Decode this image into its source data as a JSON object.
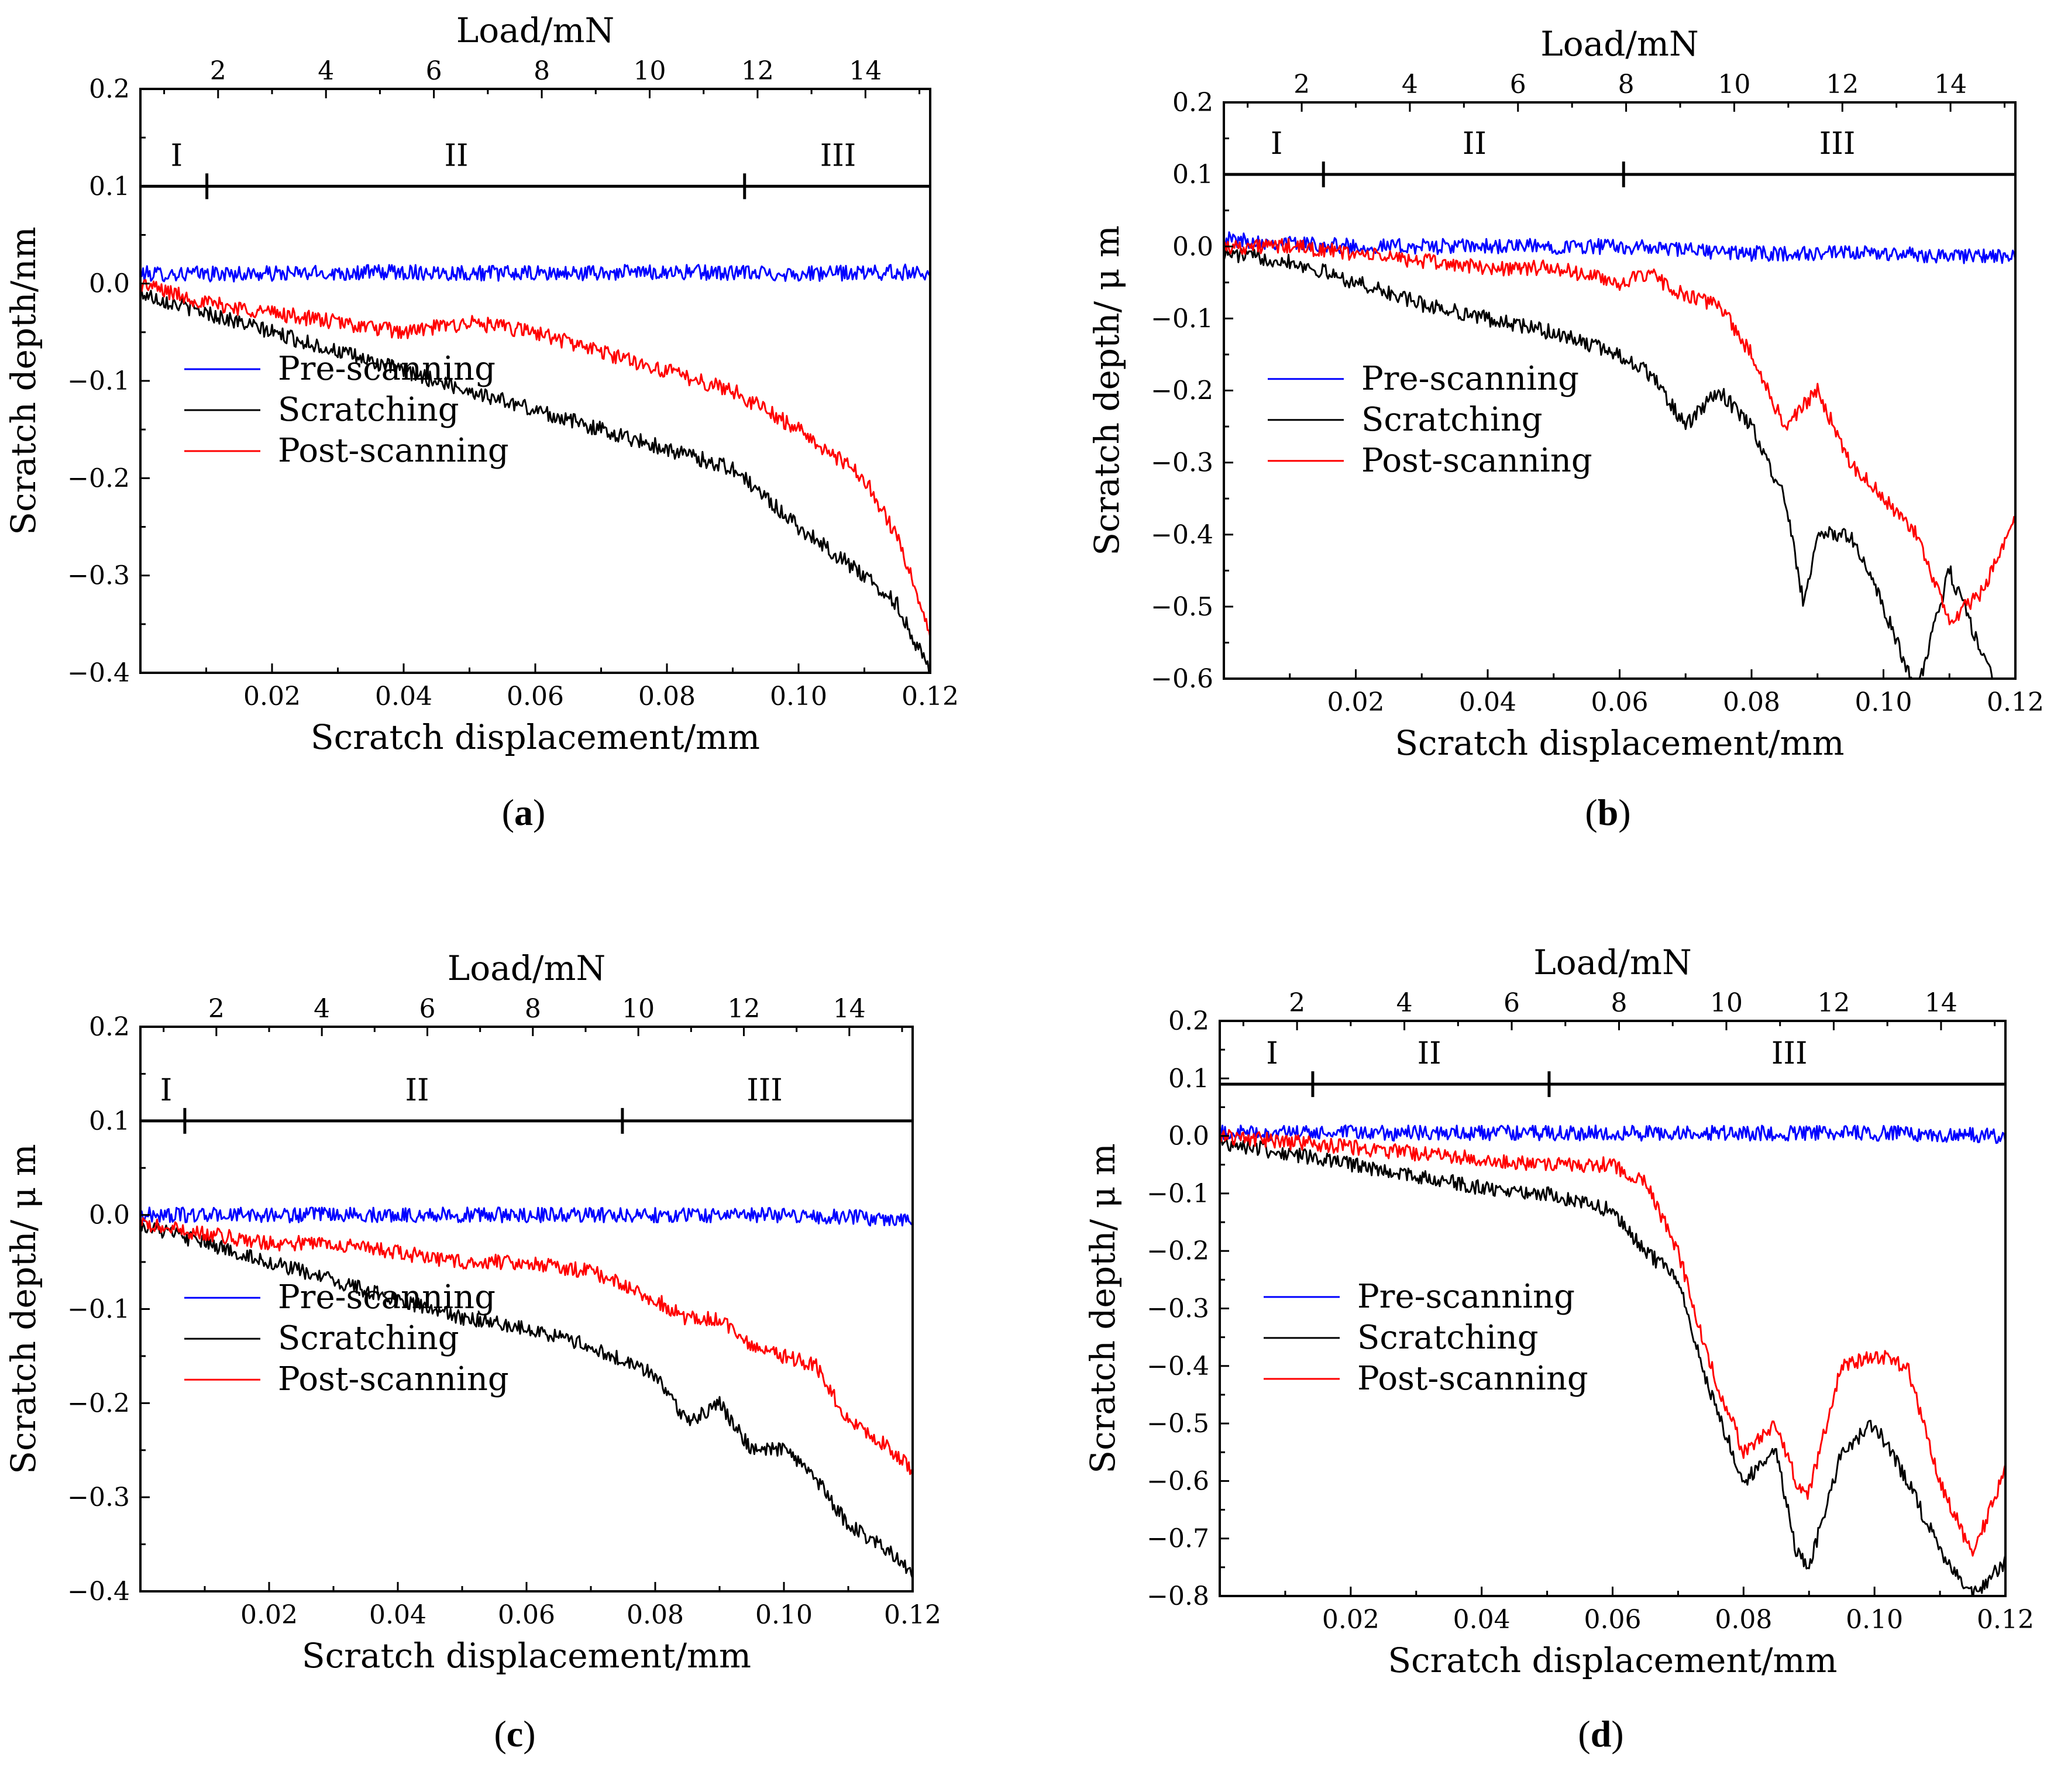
{
  "chart_data": [
    {
      "type": "line",
      "panel": "a",
      "caption": "(a)",
      "xlabel": "Scratch displacement/mm",
      "x2label": "Load/mN",
      "ylabel": "Scratch depth/nm",
      "xlim": [
        0,
        0.12
      ],
      "ylim": [
        -0.4,
        0.2
      ],
      "x2lim": [
        0.56,
        15.2
      ],
      "xticks": [
        0.02,
        0.04,
        0.06,
        0.08,
        0.1,
        0.12
      ],
      "xtick_labels": [
        "0.02",
        "0.04",
        "0.06",
        "0.08",
        "0.10",
        "0.12"
      ],
      "yticks": [
        -0.4,
        -0.3,
        -0.2,
        -0.1,
        0.0,
        0.1,
        0.2
      ],
      "ytick_labels": [
        "−0.4",
        "−0.3",
        "−0.2",
        "−0.1",
        "0.0",
        "0.1",
        "0.2"
      ],
      "x2ticks": [
        2,
        4,
        6,
        8,
        10,
        12,
        14
      ],
      "x2tick_labels": [
        "2",
        "4",
        "6",
        "8",
        "10",
        "12",
        "14"
      ],
      "region_line_y": 0.1,
      "region_boundaries": [
        0.0101,
        0.0918
      ],
      "regions": [
        {
          "label": "I",
          "x": 0.0055
        },
        {
          "label": "II",
          "x": 0.048
        },
        {
          "label": "III",
          "x": 0.106
        }
      ],
      "legend_position": "left-middle",
      "series": [
        {
          "name": "Pre-scanning",
          "color": "#0000ff",
          "x": [
            0,
            0.02,
            0.04,
            0.06,
            0.08,
            0.1,
            0.12
          ],
          "y": [
            0.01,
            0.01,
            0.012,
            0.01,
            0.012,
            0.01,
            0.012
          ]
        },
        {
          "name": "Scratching",
          "color": "#000000",
          "x": [
            0,
            0.01,
            0.02,
            0.03,
            0.04,
            0.05,
            0.06,
            0.07,
            0.08,
            0.09,
            0.1,
            0.11,
            0.115,
            0.12
          ],
          "y": [
            -0.01,
            -0.03,
            -0.05,
            -0.07,
            -0.09,
            -0.11,
            -0.13,
            -0.15,
            -0.17,
            -0.19,
            -0.25,
            -0.3,
            -0.33,
            -0.4
          ]
        },
        {
          "name": "Post-scanning",
          "color": "#ff0000",
          "x": [
            0,
            0.01,
            0.02,
            0.03,
            0.04,
            0.05,
            0.06,
            0.07,
            0.08,
            0.09,
            0.1,
            0.11,
            0.115,
            0.12
          ],
          "y": [
            0.0,
            -0.02,
            -0.03,
            -0.04,
            -0.05,
            -0.04,
            -0.05,
            -0.07,
            -0.09,
            -0.11,
            -0.15,
            -0.2,
            -0.26,
            -0.36
          ]
        }
      ]
    },
    {
      "type": "line",
      "panel": "b",
      "caption": "(b)",
      "xlabel": "Scratch displacement/mm",
      "x2label": "Load/mN",
      "ylabel": "Scratch depth/ μ m",
      "xlim": [
        0,
        0.12
      ],
      "ylim": [
        -0.6,
        0.2
      ],
      "x2lim": [
        0.56,
        15.2
      ],
      "xticks": [
        0.02,
        0.04,
        0.06,
        0.08,
        0.1,
        0.12
      ],
      "xtick_labels": [
        "0.02",
        "0.04",
        "0.06",
        "0.08",
        "0.10",
        "0.12"
      ],
      "yticks": [
        -0.6,
        -0.5,
        -0.4,
        -0.3,
        -0.2,
        -0.1,
        0.0,
        0.1,
        0.2
      ],
      "ytick_labels": [
        "−0.6",
        "−0.5",
        "−0.4",
        "−0.3",
        "−0.2",
        "−0.1",
        "0.0",
        "0.1",
        "0.2"
      ],
      "x2ticks": [
        2,
        4,
        6,
        8,
        10,
        12,
        14
      ],
      "x2tick_labels": [
        "2",
        "4",
        "6",
        "8",
        "10",
        "12",
        "14"
      ],
      "region_line_y": 0.1,
      "region_boundaries": [
        0.0151,
        0.0606
      ],
      "regions": [
        {
          "label": "I",
          "x": 0.008
        },
        {
          "label": "II",
          "x": 0.038
        },
        {
          "label": "III",
          "x": 0.093
        }
      ],
      "legend_position": "left-middle",
      "series": [
        {
          "name": "Pre-scanning",
          "color": "#0000ff",
          "x": [
            0,
            0.02,
            0.04,
            0.06,
            0.08,
            0.1,
            0.12
          ],
          "y": [
            0.01,
            0.0,
            0.0,
            0.0,
            -0.01,
            -0.01,
            -0.015
          ]
        },
        {
          "name": "Scratching",
          "color": "#000000",
          "x": [
            0,
            0.01,
            0.02,
            0.03,
            0.04,
            0.05,
            0.06,
            0.065,
            0.07,
            0.075,
            0.08,
            0.085,
            0.088,
            0.09,
            0.095,
            0.1,
            0.105,
            0.11,
            0.12
          ],
          "y": [
            -0.01,
            -0.02,
            -0.05,
            -0.08,
            -0.1,
            -0.12,
            -0.15,
            -0.18,
            -0.25,
            -0.2,
            -0.25,
            -0.35,
            -0.5,
            -0.4,
            -0.4,
            -0.5,
            -0.62,
            -0.45,
            -0.68
          ]
        },
        {
          "name": "Post-scanning",
          "color": "#ff0000",
          "x": [
            0,
            0.01,
            0.02,
            0.03,
            0.04,
            0.05,
            0.06,
            0.065,
            0.07,
            0.075,
            0.08,
            0.085,
            0.09,
            0.095,
            0.1,
            0.105,
            0.11,
            0.115,
            0.12
          ],
          "y": [
            0.0,
            0.0,
            -0.01,
            -0.02,
            -0.03,
            -0.03,
            -0.05,
            -0.04,
            -0.07,
            -0.08,
            -0.15,
            -0.25,
            -0.2,
            -0.3,
            -0.35,
            -0.4,
            -0.52,
            -0.48,
            -0.38
          ]
        }
      ]
    },
    {
      "type": "line",
      "panel": "c",
      "caption": "(c)",
      "xlabel": "Scratch displacement/mm",
      "x2label": "Load/mN",
      "ylabel": "Scratch depth/ μ m",
      "xlim": [
        0,
        0.12
      ],
      "ylim": [
        -0.4,
        0.2
      ],
      "x2lim": [
        0.56,
        15.2
      ],
      "xticks": [
        0.02,
        0.04,
        0.06,
        0.08,
        0.1,
        0.12
      ],
      "xtick_labels": [
        "0.02",
        "0.04",
        "0.06",
        "0.08",
        "0.10",
        "0.12"
      ],
      "yticks": [
        -0.4,
        -0.3,
        -0.2,
        -0.1,
        0.0,
        0.1,
        0.2
      ],
      "ytick_labels": [
        "−0.4",
        "−0.3",
        "−0.2",
        "−0.1",
        "0.0",
        "0.1",
        "0.2"
      ],
      "x2ticks": [
        2,
        4,
        6,
        8,
        10,
        12,
        14
      ],
      "x2tick_labels": [
        "2",
        "4",
        "6",
        "8",
        "10",
        "12",
        "14"
      ],
      "region_line_y": 0.1,
      "region_boundaries": [
        0.0069,
        0.0749
      ],
      "regions": [
        {
          "label": "I",
          "x": 0.004
        },
        {
          "label": "II",
          "x": 0.043
        },
        {
          "label": "III",
          "x": 0.097
        }
      ],
      "legend_position": "left-middle",
      "series": [
        {
          "name": "Pre-scanning",
          "color": "#0000ff",
          "x": [
            0,
            0.02,
            0.04,
            0.06,
            0.08,
            0.1,
            0.12
          ],
          "y": [
            0.0,
            0.0,
            0.0,
            0.0,
            0.0,
            0.0,
            -0.005
          ]
        },
        {
          "name": "Scratching",
          "color": "#000000",
          "x": [
            0,
            0.01,
            0.02,
            0.03,
            0.04,
            0.05,
            0.06,
            0.07,
            0.08,
            0.085,
            0.09,
            0.095,
            0.1,
            0.105,
            0.11,
            0.115,
            0.12
          ],
          "y": [
            -0.01,
            -0.03,
            -0.05,
            -0.07,
            -0.09,
            -0.11,
            -0.12,
            -0.14,
            -0.17,
            -0.22,
            -0.2,
            -0.25,
            -0.25,
            -0.28,
            -0.33,
            -0.35,
            -0.38
          ]
        },
        {
          "name": "Post-scanning",
          "color": "#ff0000",
          "x": [
            0,
            0.01,
            0.02,
            0.03,
            0.04,
            0.05,
            0.06,
            0.07,
            0.08,
            0.085,
            0.09,
            0.095,
            0.1,
            0.105,
            0.11,
            0.115,
            0.12
          ],
          "y": [
            -0.01,
            -0.02,
            -0.03,
            -0.03,
            -0.04,
            -0.05,
            -0.05,
            -0.06,
            -0.09,
            -0.11,
            -0.11,
            -0.14,
            -0.15,
            -0.16,
            -0.22,
            -0.24,
            -0.27
          ]
        }
      ]
    },
    {
      "type": "line",
      "panel": "d",
      "caption": "(d)",
      "xlabel": "Scratch displacement/mm",
      "x2label": "Load/mN",
      "ylabel": "Scratch depth/ μ m",
      "xlim": [
        0,
        0.12
      ],
      "ylim": [
        -0.8,
        0.2
      ],
      "x2lim": [
        0.56,
        15.2
      ],
      "xticks": [
        0.02,
        0.04,
        0.06,
        0.08,
        0.1,
        0.12
      ],
      "xtick_labels": [
        "0.02",
        "0.04",
        "0.06",
        "0.08",
        "0.10",
        "0.12"
      ],
      "yticks": [
        -0.8,
        -0.7,
        -0.6,
        -0.5,
        -0.4,
        -0.3,
        -0.2,
        -0.1,
        0.0,
        0.1,
        0.2
      ],
      "ytick_labels": [
        "−0.8",
        "−0.7",
        "−0.6",
        "−0.5",
        "−0.4",
        "−0.3",
        "−0.2",
        "−0.1",
        "0.0",
        "0.1",
        "0.2"
      ],
      "x2ticks": [
        2,
        4,
        6,
        8,
        10,
        12,
        14
      ],
      "x2tick_labels": [
        "2",
        "4",
        "6",
        "8",
        "10",
        "12",
        "14"
      ],
      "region_line_y": 0.09,
      "region_boundaries": [
        0.0142,
        0.0503
      ],
      "regions": [
        {
          "label": "I",
          "x": 0.008
        },
        {
          "label": "II",
          "x": 0.032
        },
        {
          "label": "III",
          "x": 0.087
        }
      ],
      "legend_position": "left-middle",
      "series": [
        {
          "name": "Pre-scanning",
          "color": "#0000ff",
          "x": [
            0,
            0.02,
            0.04,
            0.06,
            0.08,
            0.1,
            0.12
          ],
          "y": [
            0.005,
            0.005,
            0.005,
            0.005,
            0.005,
            0.005,
            0.0
          ]
        },
        {
          "name": "Scratching",
          "color": "#000000",
          "x": [
            0,
            0.01,
            0.02,
            0.03,
            0.04,
            0.05,
            0.06,
            0.065,
            0.07,
            0.075,
            0.08,
            0.085,
            0.088,
            0.09,
            0.095,
            0.1,
            0.105,
            0.11,
            0.115,
            0.12
          ],
          "y": [
            -0.01,
            -0.03,
            -0.05,
            -0.07,
            -0.09,
            -0.1,
            -0.13,
            -0.2,
            -0.25,
            -0.45,
            -0.6,
            -0.55,
            -0.72,
            -0.75,
            -0.55,
            -0.5,
            -0.6,
            -0.72,
            -0.8,
            -0.74
          ]
        },
        {
          "name": "Post-scanning",
          "color": "#ff0000",
          "x": [
            0,
            0.01,
            0.02,
            0.03,
            0.04,
            0.05,
            0.06,
            0.065,
            0.07,
            0.075,
            0.08,
            0.085,
            0.088,
            0.09,
            0.095,
            0.1,
            0.105,
            0.11,
            0.115,
            0.12
          ],
          "y": [
            0.0,
            -0.01,
            -0.02,
            -0.03,
            -0.04,
            -0.05,
            -0.05,
            -0.08,
            -0.2,
            -0.4,
            -0.55,
            -0.5,
            -0.6,
            -0.62,
            -0.4,
            -0.38,
            -0.4,
            -0.6,
            -0.73,
            -0.58
          ]
        }
      ]
    }
  ]
}
